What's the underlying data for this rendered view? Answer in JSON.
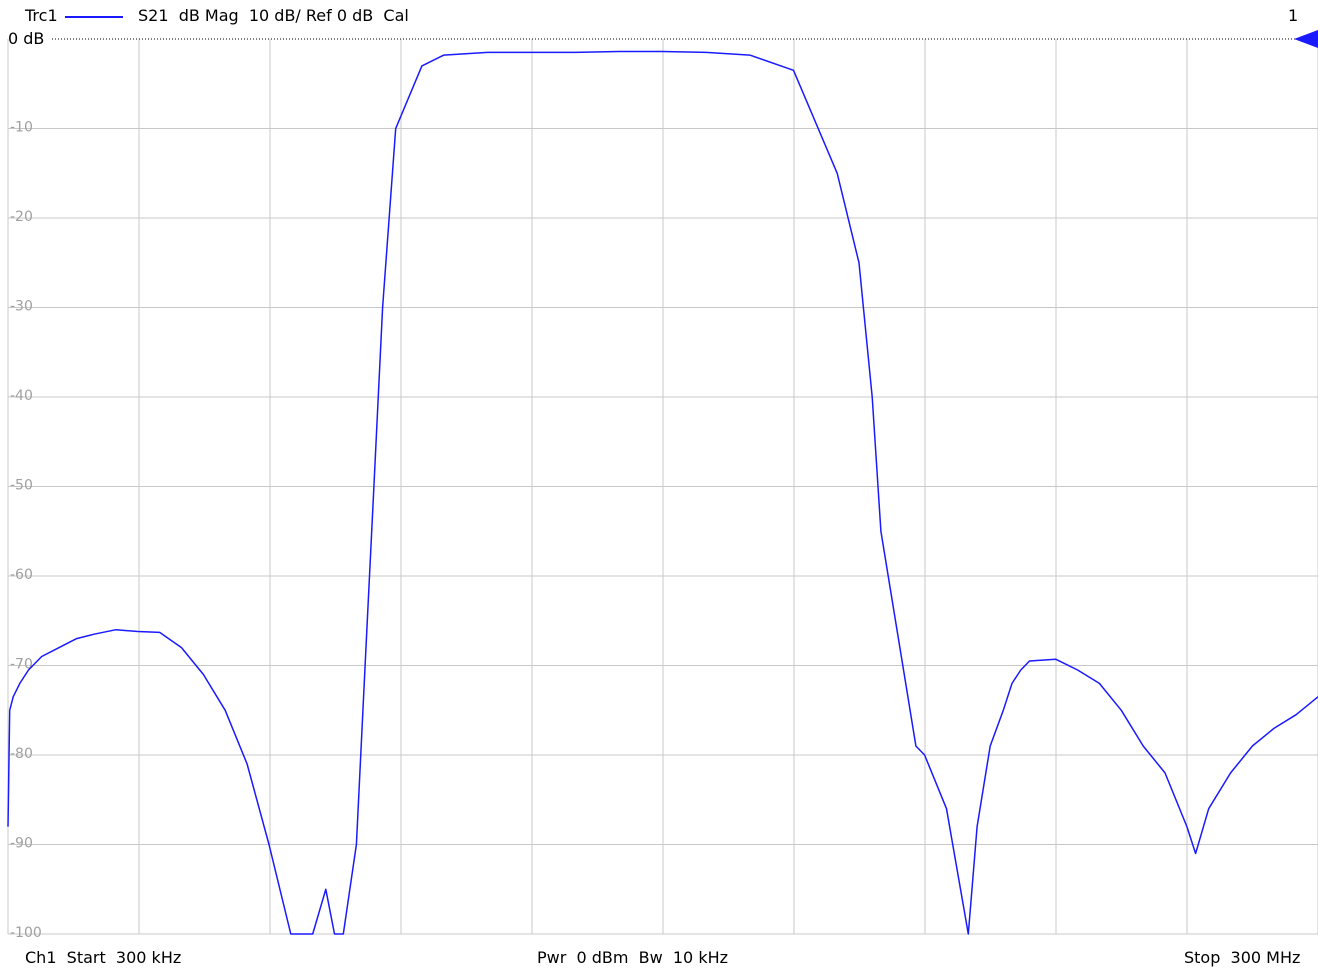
{
  "header": {
    "trace_name": "Trc1",
    "trace_info": "S21  dB Mag  10 dB/ Ref 0 dB  Cal",
    "channel_number": "1",
    "ref_label": "0 dB"
  },
  "footer": {
    "start": "Ch1  Start  300 kHz",
    "power_bw": "Pwr  0 dBm  Bw  10 kHz",
    "stop": "Stop  300 MHz"
  },
  "colors": {
    "trace": "#1a1aff",
    "grid": "#c8c8c8",
    "ref_line": "#000000",
    "axis_label": "#a0a0a0"
  },
  "chart_data": {
    "type": "line",
    "title": "",
    "xlabel": "",
    "ylabel": "",
    "x_unit": "MHz",
    "y_unit": "dB",
    "xlim": [
      0.3,
      300
    ],
    "ylim": [
      -100,
      0
    ],
    "grid": true,
    "y_ticks": [
      -10,
      -20,
      -30,
      -40,
      -50,
      -60,
      -70,
      -80,
      -90,
      -100
    ],
    "y_tick_labels": [
      "-10",
      "-20",
      "-30",
      "-40",
      "-50",
      "-60",
      "-70",
      "-80",
      "-90",
      "-100"
    ],
    "series": [
      {
        "name": "Trc1",
        "x": [
          0.3,
          0.7,
          1.5,
          3,
          5,
          8,
          12,
          16,
          20,
          25,
          30,
          35,
          40,
          45,
          50,
          55,
          60,
          65,
          70,
          73,
          75,
          77,
          80,
          82,
          84,
          86,
          89,
          95,
          100,
          110,
          120,
          130,
          140,
          150,
          160,
          170,
          180,
          190,
          195,
          198,
          200,
          205,
          208,
          210,
          215,
          220,
          222,
          225,
          228,
          230,
          232,
          234,
          240,
          245,
          250,
          255,
          260,
          265,
          270,
          272,
          275,
          280,
          285,
          290,
          295,
          300
        ],
        "values": [
          -88,
          -75,
          -73.5,
          -72,
          -70.5,
          -69,
          -68,
          -67,
          -66.5,
          -66,
          -66.2,
          -66.3,
          -68,
          -71,
          -75,
          -81,
          -90,
          -100,
          -100,
          -95,
          -100,
          -100,
          -90,
          -70,
          -50,
          -30,
          -10,
          -3,
          -1.8,
          -1.5,
          -1.5,
          -1.5,
          -1.4,
          -1.4,
          -1.5,
          -1.8,
          -3.5,
          -15,
          -25,
          -40,
          -55,
          -70,
          -79,
          -80,
          -86,
          -100,
          -88,
          -79,
          -75,
          -72,
          -70.5,
          -69.5,
          -69.3,
          -70.5,
          -72,
          -75,
          -79,
          -82,
          -88,
          -91,
          -86,
          -82,
          -79,
          -77,
          -75.5,
          -73.5
        ]
      }
    ]
  }
}
